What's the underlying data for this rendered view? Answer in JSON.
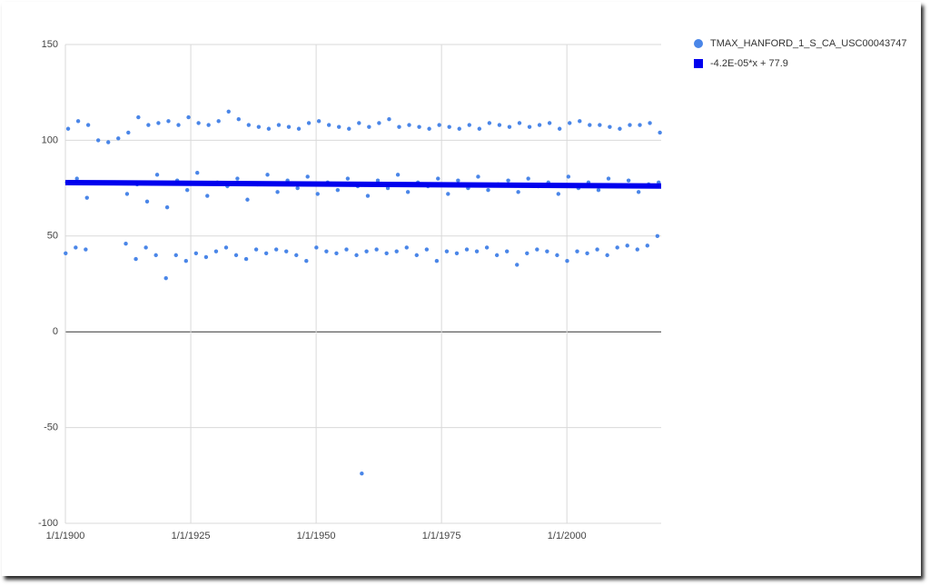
{
  "chart_data": {
    "type": "scatter",
    "xlim": [
      1900,
      2018.8
    ],
    "ylim": [
      -100,
      150
    ],
    "xticks": [
      {
        "value": 1900,
        "label": "1/1/1900"
      },
      {
        "value": 1925,
        "label": "1/1/1925"
      },
      {
        "value": 1950,
        "label": "1/1/1950"
      },
      {
        "value": 1975,
        "label": "1/1/1975"
      },
      {
        "value": 2000,
        "label": "1/1/2000"
      }
    ],
    "yticks": [
      -100,
      -50,
      0,
      50,
      100,
      150
    ],
    "grid": true,
    "legend": "right",
    "series": [
      {
        "name": "TMAX_HANFORD_1_S_CA_USC00043747",
        "color": "#4a86e8",
        "x": [
          1900.05,
          1900.55,
          1900.3,
          1902.05,
          1902.55,
          1902.3,
          1904.05,
          1904.55,
          1904.3,
          1906.55,
          1908.55,
          1910.55,
          1909.3,
          1912.05,
          1912.55,
          1912.3,
          1914.05,
          1914.55,
          1914.3,
          1916.05,
          1916.55,
          1916.3,
          1918.05,
          1918.55,
          1918.3,
          1920.05,
          1920.55,
          1920.3,
          1922.05,
          1922.55,
          1922.3,
          1924.05,
          1924.55,
          1924.3,
          1926.05,
          1926.55,
          1926.3,
          1928.05,
          1928.55,
          1928.3,
          1930.05,
          1930.55,
          1930.3,
          1932.05,
          1932.55,
          1932.3,
          1934.05,
          1934.55,
          1934.3,
          1936.05,
          1936.55,
          1936.3,
          1938.05,
          1938.55,
          1938.3,
          1940.05,
          1940.55,
          1940.3,
          1942.05,
          1942.55,
          1942.3,
          1944.05,
          1944.55,
          1944.3,
          1946.05,
          1946.55,
          1946.3,
          1948.05,
          1948.55,
          1948.3,
          1950.05,
          1950.55,
          1950.3,
          1952.05,
          1952.55,
          1952.3,
          1954.05,
          1954.55,
          1954.3,
          1956.05,
          1956.55,
          1956.3,
          1958.05,
          1958.55,
          1958.3,
          1959.1,
          1960.05,
          1960.55,
          1960.3,
          1962.05,
          1962.55,
          1962.3,
          1964.05,
          1964.55,
          1964.3,
          1966.05,
          1966.55,
          1966.3,
          1968.05,
          1968.55,
          1968.3,
          1970.05,
          1970.55,
          1970.3,
          1972.05,
          1972.55,
          1972.3,
          1974.05,
          1974.55,
          1974.3,
          1976.05,
          1976.55,
          1976.3,
          1978.05,
          1978.55,
          1978.3,
          1980.05,
          1980.55,
          1980.3,
          1982.05,
          1982.55,
          1982.3,
          1984.05,
          1984.55,
          1984.3,
          1986.05,
          1986.55,
          1986.3,
          1988.05,
          1988.55,
          1988.3,
          1990.05,
          1990.55,
          1990.3,
          1992.05,
          1992.55,
          1992.3,
          1994.05,
          1994.55,
          1994.3,
          1996.05,
          1996.55,
          1996.3,
          1998.05,
          1998.55,
          1998.3,
          2000.05,
          2000.55,
          2000.3,
          2002.05,
          2002.55,
          2002.3,
          2004.05,
          2004.55,
          2004.3,
          2006.05,
          2006.55,
          2006.3,
          2008.05,
          2008.55,
          2008.3,
          2010.05,
          2010.55,
          2010.3,
          2012.05,
          2012.55,
          2012.3,
          2014.05,
          2014.55,
          2014.3,
          2016.05,
          2016.55,
          2016.3,
          2018.05,
          2018.55,
          2018.3
        ],
        "values": [
          41,
          106,
          78,
          44,
          110,
          80,
          43,
          108,
          70,
          100,
          99,
          101,
          78,
          46,
          104,
          72,
          38,
          112,
          77,
          44,
          108,
          68,
          40,
          109,
          82,
          28,
          110,
          65,
          40,
          108,
          79,
          37,
          112,
          74,
          41,
          109,
          83,
          39,
          108,
          71,
          42,
          110,
          78,
          44,
          115,
          76,
          40,
          111,
          80,
          38,
          108,
          69,
          43,
          107,
          77,
          41,
          106,
          82,
          43,
          108,
          73,
          42,
          107,
          79,
          40,
          106,
          75,
          37,
          109,
          81,
          44,
          110,
          72,
          42,
          108,
          78,
          41,
          107,
          74,
          43,
          106,
          80,
          40,
          109,
          76,
          -74,
          42,
          107,
          71,
          43,
          109,
          79,
          41,
          111,
          75,
          42,
          107,
          82,
          44,
          108,
          73,
          40,
          107,
          78,
          43,
          106,
          76,
          37,
          108,
          80,
          42,
          107,
          72,
          41,
          106,
          79,
          43,
          108,
          75,
          42,
          106,
          81,
          44,
          109,
          74,
          40,
          108,
          77,
          42,
          107,
          79,
          35,
          109,
          73,
          41,
          107,
          80,
          43,
          108,
          76,
          42,
          109,
          78,
          40,
          106,
          72,
          37,
          109,
          81,
          42,
          110,
          75,
          41,
          108,
          78,
          43,
          108,
          74,
          40,
          107,
          80,
          44,
          106,
          76,
          45,
          108,
          79,
          43,
          108,
          73,
          45,
          109,
          77,
          50,
          104,
          78
        ]
      },
      {
        "name": "-4.2E-05*x + 77.9",
        "color": "#0000ee",
        "type": "line",
        "x": [
          1900,
          2018.8
        ],
        "values": [
          77.9,
          76.1
        ]
      }
    ]
  }
}
